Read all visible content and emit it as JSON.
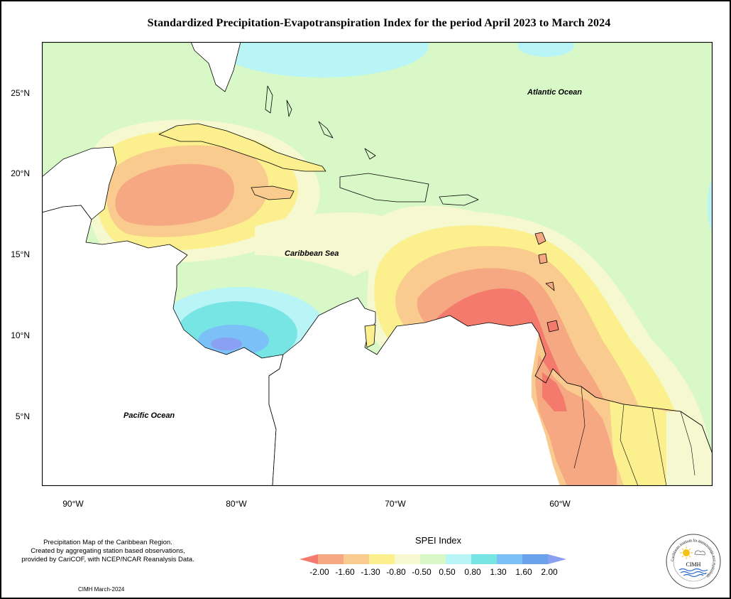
{
  "title": "Standardized Precipitation-Evapotranspiration Index for the period April 2023 to March 2024",
  "map": {
    "lat_labels": [
      "25°N",
      "20°N",
      "15°N",
      "10°N",
      "5°N"
    ],
    "lon_labels": [
      "90°W",
      "80°W",
      "70°W",
      "60°W"
    ],
    "ocean_labels": {
      "atlantic": "Atlantic Ocean",
      "caribbean": "Caribbean Sea",
      "pacific": "Pacific Ocean"
    }
  },
  "legend": {
    "title": "SPEI Index",
    "ticks": [
      "-2.00",
      "-1.60",
      "-1.30",
      "-0.80",
      "-0.50",
      "0.50",
      "0.80",
      "1.30",
      "1.60",
      "2.00"
    ],
    "colors": [
      "#f47a6d",
      "#f5a882",
      "#f9cb8f",
      "#fbef8e",
      "#f6f8cf",
      "#d8f8c7",
      "#b9f5f7",
      "#77e5e3",
      "#7bc1f8",
      "#6aa3e9",
      "#8aa0f2"
    ]
  },
  "footnote": {
    "line1": "Precipitation Map of the Caribbean Region.",
    "line2": "Created by aggregating station based observations,",
    "line3": "provided by CariCOF, with NCEP/NCAR Reanalysis Data."
  },
  "credit": "CIMH March-2024",
  "logo": {
    "name": "CIMH",
    "ring_text": "Caribbean Institute for Meteorology and Hydrology"
  }
}
